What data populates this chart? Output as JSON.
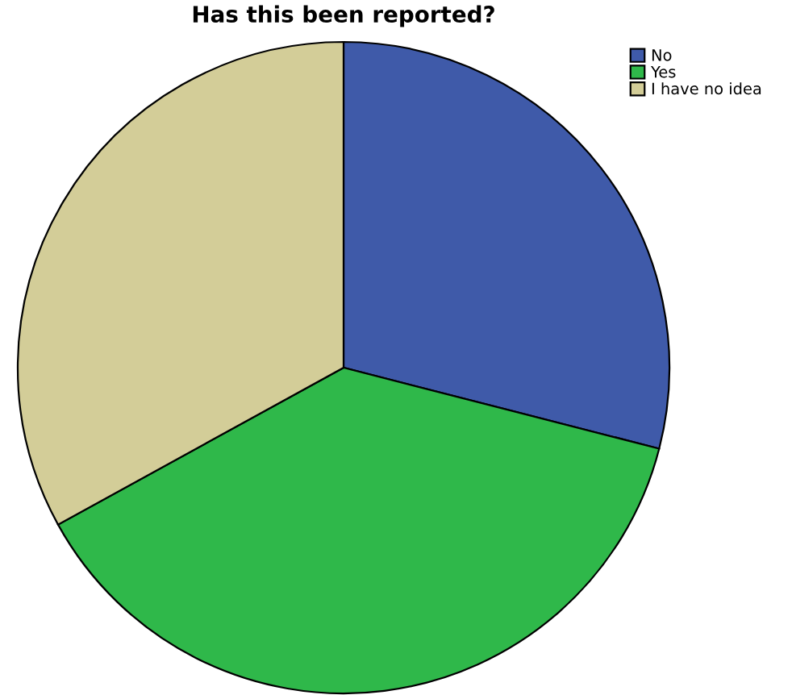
{
  "chart_data": {
    "type": "pie",
    "title": "Has this been reported?",
    "categories": [
      "No",
      "Yes",
      "I have no idea"
    ],
    "values": [
      29,
      38,
      33
    ],
    "colors": [
      "#3f5aa9",
      "#2fb84a",
      "#d3cd98"
    ],
    "legend": "top right"
  }
}
